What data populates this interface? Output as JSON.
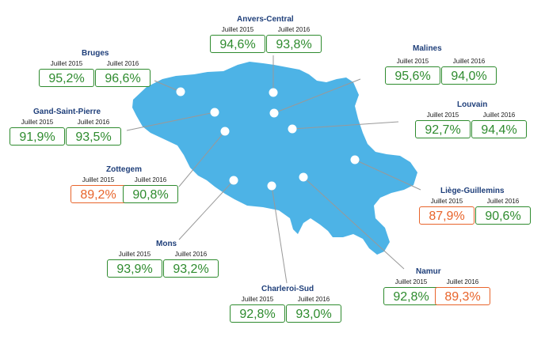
{
  "colors": {
    "map_fill": "#4db3e6",
    "good": "#2e8b2e",
    "below_target": "#e8642b",
    "station_name": "#1f3f7a",
    "connector": "#999999"
  },
  "stations": [
    {
      "name": "Anvers-Central",
      "periods": [
        {
          "label": "Juillet 2015",
          "value": "94,6%",
          "status": "good"
        },
        {
          "label": "Juillet 2016",
          "value": "93,8%",
          "status": "good"
        }
      ]
    },
    {
      "name": "Bruges",
      "periods": [
        {
          "label": "Juillet 2015",
          "value": "95,2%",
          "status": "good"
        },
        {
          "label": "Juillet 2016",
          "value": "96,6%",
          "status": "good"
        }
      ]
    },
    {
      "name": "Malines",
      "periods": [
        {
          "label": "Juillet 2015",
          "value": "95,6%",
          "status": "good"
        },
        {
          "label": "Juillet 2016",
          "value": "94,0%",
          "status": "good"
        }
      ]
    },
    {
      "name": "Gand-Saint-Pierre",
      "periods": [
        {
          "label": "Juillet 2015",
          "value": "91,9%",
          "status": "good"
        },
        {
          "label": "Juillet 2016",
          "value": "93,5%",
          "status": "good"
        }
      ]
    },
    {
      "name": "Louvain",
      "periods": [
        {
          "label": "Juillet 2015",
          "value": "92,7%",
          "status": "good"
        },
        {
          "label": "Juillet 2016",
          "value": "94,4%",
          "status": "good"
        }
      ]
    },
    {
      "name": "Zottegem",
      "periods": [
        {
          "label": "Juillet 2015",
          "value": "89,2%",
          "status": "below"
        },
        {
          "label": "Juillet 2016",
          "value": "90,8%",
          "status": "good"
        }
      ]
    },
    {
      "name": "Liège-Guillemins",
      "periods": [
        {
          "label": "Juillet 2015",
          "value": "87,9%",
          "status": "below"
        },
        {
          "label": "Juillet 2016",
          "value": "90,6%",
          "status": "good"
        }
      ]
    },
    {
      "name": "Mons",
      "periods": [
        {
          "label": "Juillet 2015",
          "value": "93,9%",
          "status": "good"
        },
        {
          "label": "Juillet 2016",
          "value": "93,2%",
          "status": "good"
        }
      ]
    },
    {
      "name": "Namur",
      "periods": [
        {
          "label": "Juillet 2015",
          "value": "92,8%",
          "status": "good"
        },
        {
          "label": "Juillet 2016",
          "value": "89,3%",
          "status": "below"
        }
      ]
    },
    {
      "name": "Charleroi-Sud",
      "periods": [
        {
          "label": "Juillet 2015",
          "value": "92,8%",
          "status": "good"
        },
        {
          "label": "Juillet 2016",
          "value": "93,0%",
          "status": "good"
        }
      ]
    }
  ]
}
